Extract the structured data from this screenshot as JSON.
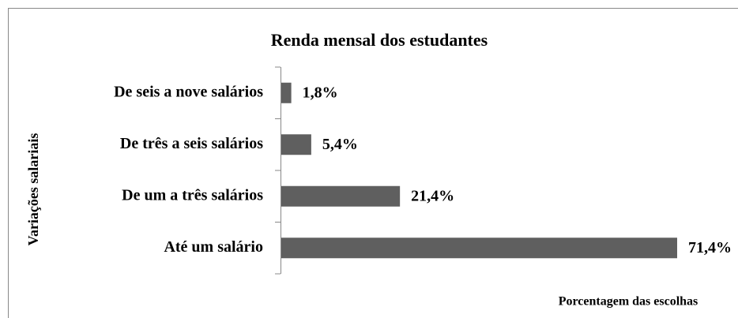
{
  "chart_data": {
    "type": "barh",
    "title": "Renda mensal dos estudantes",
    "categories": [
      "De seis a nove salários",
      "De três a seis salários",
      "De um a três salários",
      "Até um salário"
    ],
    "values": [
      1.8,
      5.4,
      21.4,
      71.4
    ],
    "value_labels": [
      "1,8%",
      "5,4%",
      "21,4%",
      "71,4%"
    ],
    "color": "#5f5f5f",
    "ylabel": "Variações salariais",
    "xlabel": "Porcentagem das escolhas"
  }
}
